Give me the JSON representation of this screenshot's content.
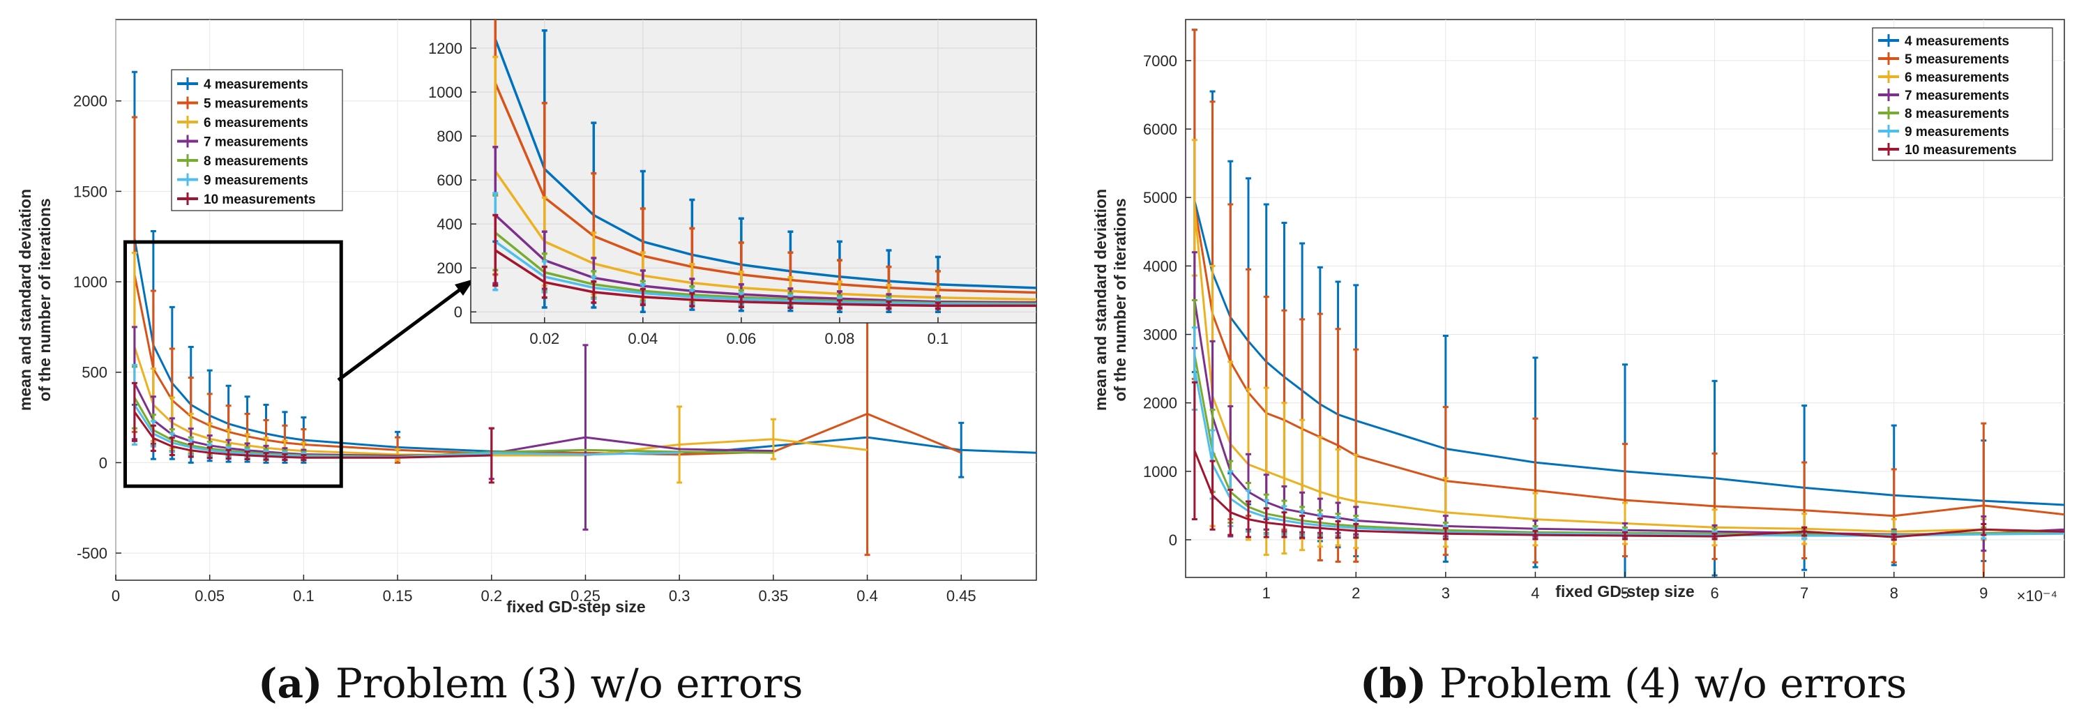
{
  "chart_data": [
    {
      "id": "a",
      "type": "line",
      "error_bars": true,
      "title": "",
      "xlabel": "fixed GD-step size",
      "ylabel_lines": [
        "mean and standard deviation",
        "of the number of iterations"
      ],
      "xlim": [
        0,
        0.49
      ],
      "ylim": [
        -650,
        2450
      ],
      "xticks": [
        0,
        0.05,
        0.1,
        0.15,
        0.2,
        0.25,
        0.3,
        0.35,
        0.4,
        0.45
      ],
      "xtick_labels": [
        "0",
        "0.05",
        "0.1",
        "0.15",
        "0.2",
        "0.25",
        "0.3",
        "0.35",
        "0.4",
        "0.45"
      ],
      "yticks": [
        -500,
        0,
        500,
        1000,
        1500,
        2000
      ],
      "ytick_labels": [
        "-500",
        "0",
        "500",
        "1000",
        "1500",
        "2000"
      ],
      "legend_position": "top-left",
      "caption": {
        "letter": "(a)",
        "text": " Problem (3) w/o errors"
      },
      "series": [
        {
          "name": "4 measurements",
          "color": "#0072BD",
          "x": [
            0.01,
            0.02,
            0.03,
            0.04,
            0.05,
            0.06,
            0.07,
            0.08,
            0.09,
            0.1,
            0.15,
            0.2,
            0.3,
            0.4,
            0.45,
            0.49
          ],
          "y": [
            1240,
            650,
            440,
            320,
            260,
            215,
            185,
            160,
            140,
            125,
            85,
            62,
            45,
            140,
            70,
            55
          ],
          "err": [
            920,
            630,
            420,
            320,
            250,
            210,
            180,
            160,
            140,
            125,
            85,
            0,
            0,
            0,
            150,
            0
          ]
        },
        {
          "name": "5 measurements",
          "color": "#D95319",
          "x": [
            0.01,
            0.02,
            0.03,
            0.04,
            0.05,
            0.06,
            0.07,
            0.08,
            0.09,
            0.1,
            0.15,
            0.2,
            0.25,
            0.3,
            0.35,
            0.4,
            0.45
          ],
          "y": [
            1040,
            520,
            345,
            255,
            205,
            170,
            145,
            125,
            110,
            100,
            70,
            50,
            55,
            45,
            60,
            270,
            55
          ],
          "err": [
            870,
            430,
            285,
            215,
            175,
            145,
            125,
            110,
            95,
            85,
            70,
            0,
            0,
            0,
            0,
            780,
            0
          ]
        },
        {
          "name": "6 measurements",
          "color": "#EDB120",
          "x": [
            0.01,
            0.02,
            0.03,
            0.04,
            0.05,
            0.06,
            0.07,
            0.08,
            0.09,
            0.1,
            0.15,
            0.2,
            0.25,
            0.3,
            0.35,
            0.4
          ],
          "y": [
            640,
            320,
            220,
            165,
            132,
            110,
            95,
            82,
            72,
            65,
            45,
            40,
            40,
            100,
            130,
            70
          ],
          "err": [
            520,
            200,
            140,
            105,
            85,
            72,
            62,
            55,
            50,
            45,
            30,
            0,
            0,
            210,
            110,
            0
          ]
        },
        {
          "name": "7 measurements",
          "color": "#7E2F8E",
          "x": [
            0.01,
            0.02,
            0.03,
            0.04,
            0.05,
            0.06,
            0.07,
            0.08,
            0.09,
            0.1,
            0.15,
            0.2,
            0.25,
            0.3,
            0.35
          ],
          "y": [
            440,
            235,
            155,
            118,
            95,
            80,
            68,
            60,
            52,
            46,
            38,
            50,
            140,
            75,
            65
          ],
          "err": [
            310,
            130,
            90,
            70,
            55,
            45,
            38,
            33,
            28,
            25,
            0,
            140,
            510,
            0,
            0
          ]
        },
        {
          "name": "8 measurements",
          "color": "#77AC30",
          "x": [
            0.01,
            0.02,
            0.03,
            0.04,
            0.05,
            0.06,
            0.07,
            0.08,
            0.09,
            0.1,
            0.15,
            0.2,
            0.25,
            0.3,
            0.35
          ],
          "y": [
            360,
            180,
            125,
            95,
            78,
            66,
            57,
            50,
            45,
            40,
            33,
            58,
            70,
            60,
            55
          ],
          "err": [
            170,
            85,
            60,
            45,
            38,
            32,
            28,
            25,
            22,
            20,
            0,
            0,
            0,
            0,
            0
          ]
        },
        {
          "name": "9 measurements",
          "color": "#4DBEEE",
          "x": [
            0.01,
            0.02,
            0.03,
            0.04,
            0.05,
            0.06,
            0.07,
            0.08,
            0.09,
            0.1,
            0.15,
            0.2,
            0.25,
            0.3
          ],
          "y": [
            320,
            160,
            110,
            85,
            68,
            58,
            50,
            44,
            40,
            36,
            30,
            52,
            45,
            55
          ],
          "err": [
            220,
            70,
            50,
            40,
            32,
            27,
            24,
            21,
            19,
            17,
            0,
            0,
            0,
            0
          ]
        },
        {
          "name": "10 measurements",
          "color": "#A2142F",
          "x": [
            0.01,
            0.02,
            0.03,
            0.04,
            0.05,
            0.06,
            0.07,
            0.08,
            0.09,
            0.1,
            0.15,
            0.2
          ],
          "y": [
            280,
            135,
            90,
            68,
            55,
            46,
            40,
            35,
            31,
            28,
            28,
            40
          ],
          "err": [
            160,
            70,
            48,
            36,
            29,
            24,
            21,
            18,
            16,
            14,
            0,
            150
          ]
        }
      ],
      "inset": {
        "xlim": [
          0.005,
          0.12
        ],
        "ylim": [
          -50,
          1330
        ],
        "xticks": [
          0.02,
          0.04,
          0.06,
          0.08,
          0.1
        ],
        "xtick_labels": [
          "0.02",
          "0.04",
          "0.06",
          "0.08",
          "0.1"
        ],
        "yticks": [
          0,
          200,
          400,
          600,
          800,
          1000,
          1200
        ],
        "ytick_labels": [
          "0",
          "200",
          "400",
          "600",
          "800",
          "1000",
          "1200"
        ],
        "zoom_region": {
          "x": [
            0.005,
            0.12
          ],
          "y": [
            -130,
            1220
          ]
        }
      }
    },
    {
      "id": "b",
      "type": "line",
      "error_bars": true,
      "title": "",
      "xlabel": "fixed GD-step size",
      "ylabel_lines": [
        "mean and standard deviation",
        "of the number of iterations"
      ],
      "x_exponent": "×10⁻⁴",
      "xlim": [
        0.1,
        9.9
      ],
      "ylim": [
        -550,
        7600
      ],
      "xticks": [
        1,
        2,
        3,
        4,
        5,
        6,
        7,
        8,
        9
      ],
      "xtick_labels": [
        "1",
        "2",
        "3",
        "4",
        "5",
        "6",
        "7",
        "8",
        "9"
      ],
      "yticks": [
        0,
        1000,
        2000,
        3000,
        4000,
        5000,
        6000,
        7000
      ],
      "ytick_labels": [
        "0",
        "1000",
        "2000",
        "3000",
        "4000",
        "5000",
        "6000",
        "7000"
      ],
      "legend_position": "top-right",
      "caption": {
        "letter": "(b)",
        "text": " Problem (4) w/o errors"
      },
      "series": [
        {
          "name": "4 measurements",
          "color": "#0072BD",
          "x": [
            0.2,
            0.4,
            0.6,
            0.8,
            1.0,
            1.2,
            1.4,
            1.6,
            1.8,
            2.0,
            3,
            4,
            5,
            6,
            7,
            8,
            9,
            9.9
          ],
          "y": [
            4950,
            3900,
            3250,
            2900,
            2600,
            2380,
            2180,
            1980,
            1830,
            1740,
            1330,
            1130,
            1000,
            900,
            760,
            650,
            570,
            510
          ],
          "err": [
            2500,
            2650,
            2280,
            2380,
            2300,
            2250,
            2150,
            2000,
            1940,
            1980,
            1650,
            1530,
            1560,
            1420,
            1200,
            1020,
            880,
            0
          ]
        },
        {
          "name": "5 measurements",
          "color": "#D95319",
          "x": [
            0.2,
            0.4,
            0.6,
            0.8,
            1.0,
            1.2,
            1.4,
            1.6,
            1.8,
            2.0,
            3,
            4,
            5,
            6,
            7,
            8,
            9,
            9.9
          ],
          "y": [
            4900,
            3300,
            2600,
            2150,
            1850,
            1750,
            1620,
            1500,
            1380,
            1230,
            860,
            720,
            580,
            490,
            430,
            350,
            500,
            370
          ],
          "err": [
            2550,
            3100,
            2300,
            1800,
            1700,
            1600,
            1600,
            1800,
            1700,
            1550,
            1080,
            1050,
            820,
            770,
            700,
            680,
            1200,
            0
          ]
        },
        {
          "name": "6 measurements",
          "color": "#EDB120",
          "x": [
            0.2,
            0.4,
            0.6,
            0.8,
            1.0,
            1.2,
            1.4,
            1.6,
            1.8,
            2.0,
            3,
            4,
            5,
            6,
            7,
            8,
            9,
            9.9
          ],
          "y": [
            4850,
            2100,
            1400,
            1100,
            1000,
            900,
            800,
            700,
            620,
            560,
            400,
            300,
            240,
            180,
            160,
            120,
            150,
            100
          ],
          "err": [
            990,
            1900,
            1200,
            1100,
            1220,
            1100,
            950,
            800,
            700,
            680,
            500,
            380,
            300,
            260,
            220,
            180,
            150,
            0
          ]
        },
        {
          "name": "7 measurements",
          "color": "#7E2F8E",
          "x": [
            0.2,
            0.4,
            0.6,
            0.8,
            1.0,
            1.2,
            1.4,
            1.6,
            1.8,
            2.0,
            3,
            4,
            5,
            6,
            7,
            8,
            9,
            9.9
          ],
          "y": [
            3500,
            1800,
            1000,
            700,
            550,
            450,
            400,
            350,
            320,
            280,
            200,
            160,
            140,
            120,
            100,
            80,
            90,
            150
          ],
          "err": [
            700,
            1100,
            950,
            550,
            400,
            330,
            290,
            250,
            220,
            200,
            150,
            120,
            100,
            90,
            80,
            70,
            250,
            0
          ]
        },
        {
          "name": "8 measurements",
          "color": "#77AC30",
          "x": [
            0.2,
            0.4,
            0.6,
            0.8,
            1.0,
            1.2,
            1.4,
            1.6,
            1.8,
            2.0,
            3,
            4,
            5,
            6,
            7,
            8,
            9,
            9.9
          ],
          "y": [
            2700,
            1300,
            700,
            480,
            380,
            330,
            280,
            250,
            220,
            200,
            140,
            110,
            100,
            90,
            80,
            70,
            100,
            110
          ],
          "err": [
            800,
            600,
            450,
            350,
            280,
            240,
            200,
            180,
            160,
            150,
            110,
            90,
            80,
            70,
            60,
            60,
            80,
            0
          ]
        },
        {
          "name": "9 measurements",
          "color": "#4DBEEE",
          "x": [
            0.2,
            0.4,
            0.6,
            0.8,
            1.0,
            1.2,
            1.4,
            1.6,
            1.8,
            2.0,
            3,
            4,
            5,
            6,
            7,
            8,
            9,
            9.9
          ],
          "y": [
            2500,
            1100,
            600,
            420,
            330,
            280,
            240,
            210,
            190,
            170,
            110,
            90,
            80,
            70,
            60,
            60,
            80,
            90
          ],
          "err": [
            600,
            500,
            400,
            300,
            250,
            210,
            180,
            160,
            140,
            130,
            90,
            70,
            60,
            50,
            50,
            40,
            60,
            0
          ]
        },
        {
          "name": "10 measurements",
          "color": "#A2142F",
          "x": [
            0.2,
            0.4,
            0.6,
            0.8,
            1.0,
            1.2,
            1.4,
            1.6,
            1.8,
            2.0,
            3,
            4,
            5,
            6,
            7,
            8,
            9,
            9.9
          ],
          "y": [
            1300,
            650,
            400,
            300,
            250,
            220,
            190,
            170,
            150,
            130,
            90,
            70,
            60,
            50,
            120,
            40,
            150,
            120
          ],
          "err": [
            1000,
            500,
            330,
            260,
            210,
            180,
            160,
            140,
            120,
            100,
            80,
            60,
            50,
            40,
            60,
            40,
            80,
            0
          ]
        }
      ]
    }
  ]
}
